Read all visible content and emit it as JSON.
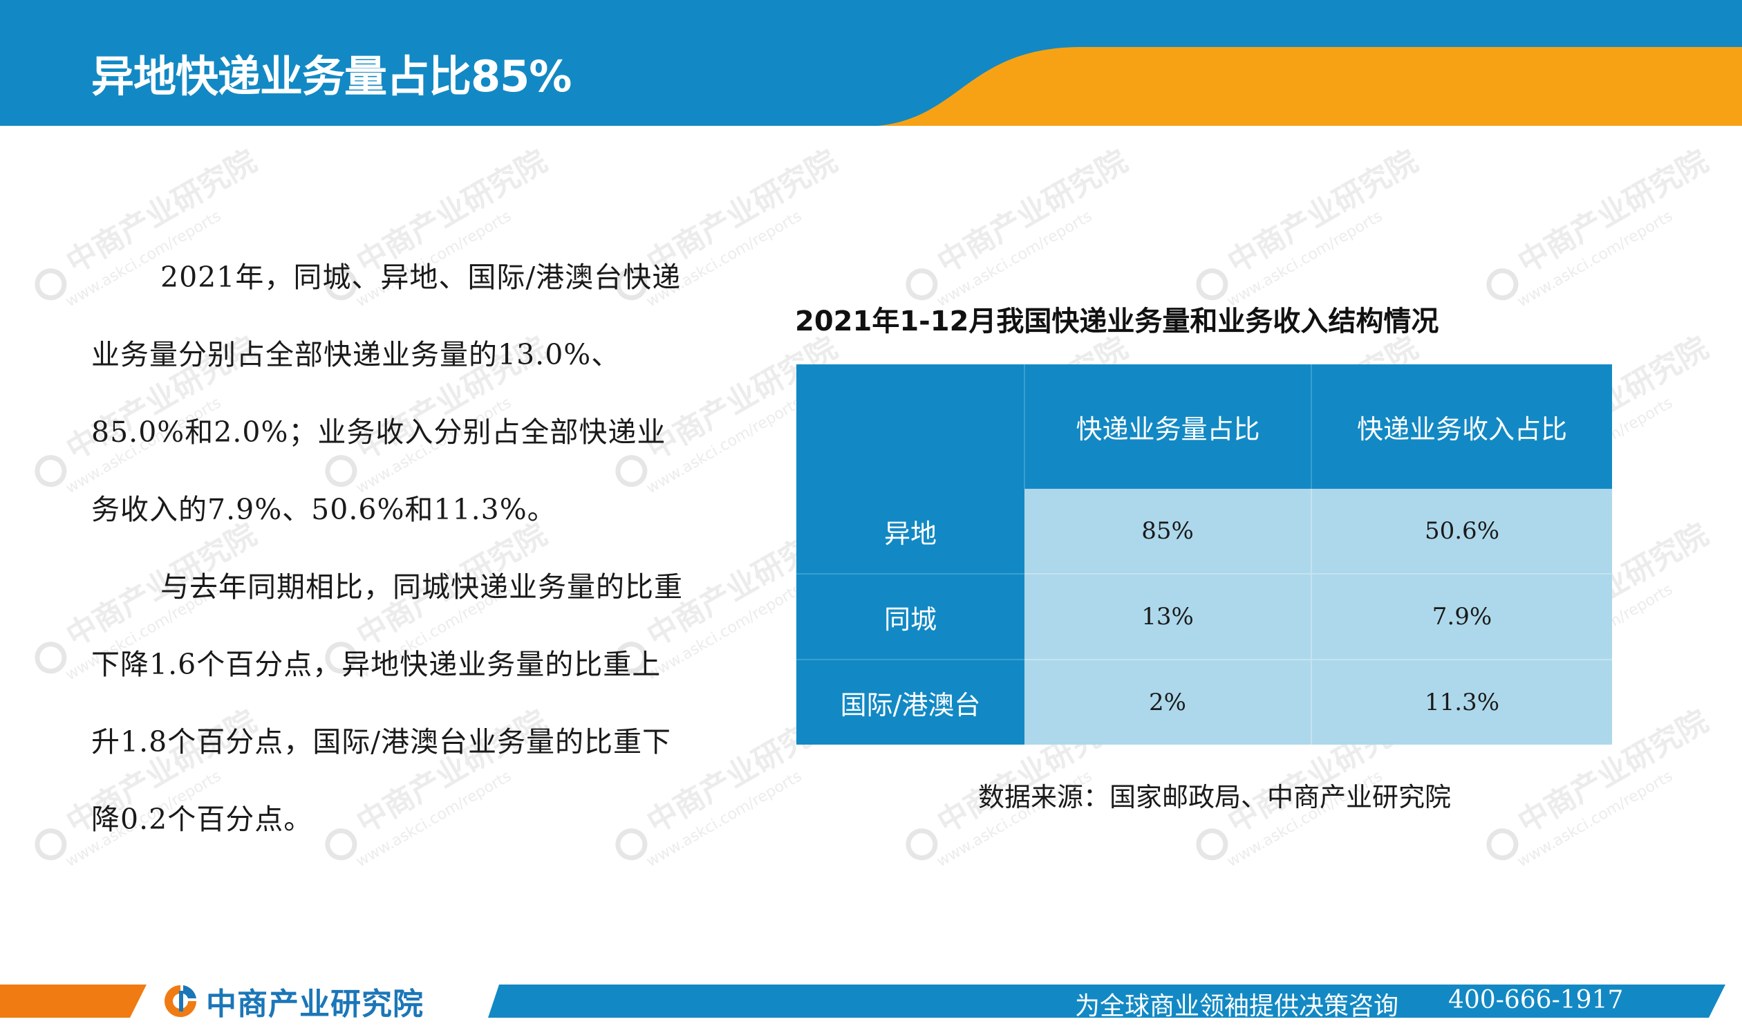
{
  "header": {
    "title": "异地快递业务量占比85%"
  },
  "watermark": {
    "name": "中商产业研究院",
    "url": "www.askci.com/reports"
  },
  "body": {
    "paragraph1": "2021年，同城、异地、国际/港澳台快递业务量分别占全部快递业务量的13.0%、85.0%和2.0%；业务收入分别占全部快递业务收入的7.9%、50.6%和11.3%。",
    "paragraph2": "与去年同期相比，同城快递业务量的比重下降1.6个百分点，异地快递业务量的比重上升1.8个百分点，国际/港澳台业务量的比重下降0.2个百分点。"
  },
  "table": {
    "title": "2021年1-12月我国快递业务量和业务收入结构情况",
    "columns": [
      "",
      "快递业务量占比",
      "快递业务收入占比"
    ],
    "rows": [
      {
        "label": "异地",
        "volume": "85%",
        "revenue": "50.6%"
      },
      {
        "label": "同城",
        "volume": "13%",
        "revenue": "7.9%"
      },
      {
        "label": "国际/港澳台",
        "volume": "2%",
        "revenue": "11.3%"
      }
    ],
    "source": "数据来源：国家邮政局、中商产业研究院"
  },
  "footer": {
    "brand": "中商产业研究院",
    "slogan": "为全球商业领袖提供决策咨询",
    "phone": "400-666-1917"
  },
  "colors": {
    "primary_blue": "#1289c4",
    "accent_orange": "#f7a215",
    "table_cell": "#add8eb"
  }
}
